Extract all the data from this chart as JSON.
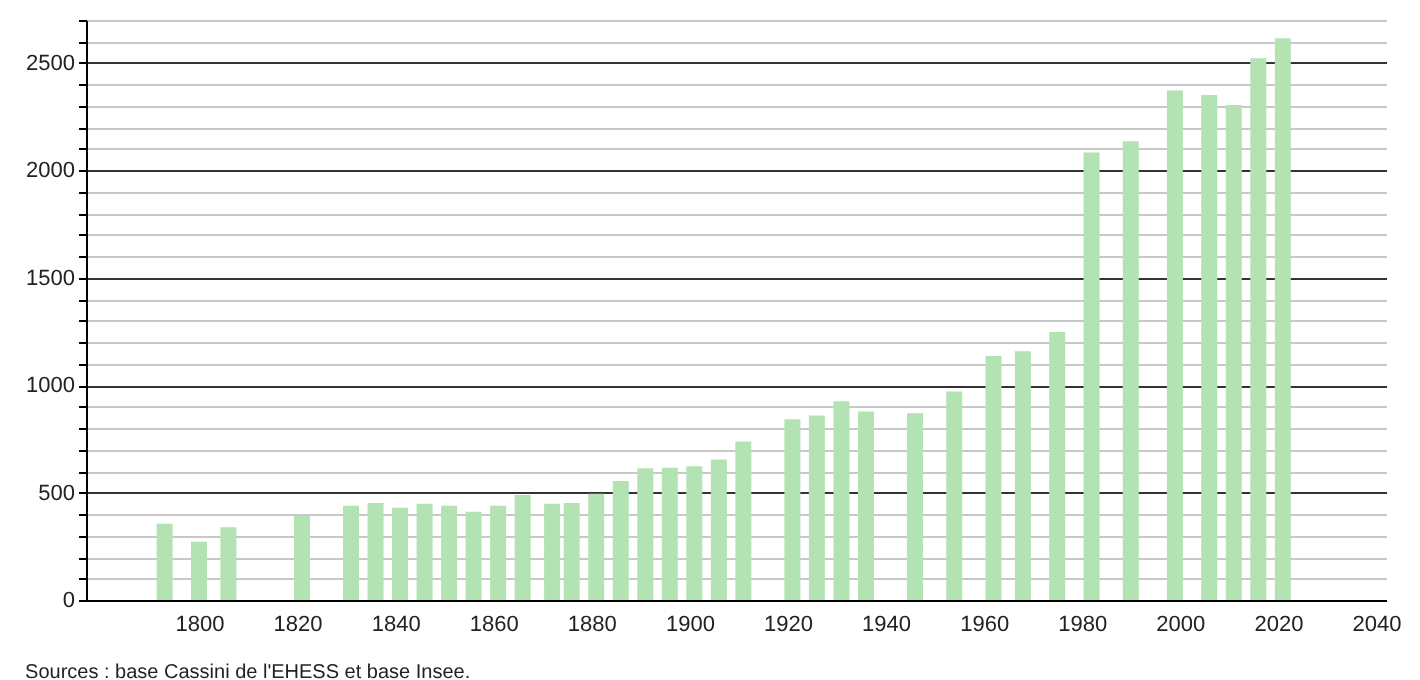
{
  "chart_data": {
    "type": "bar",
    "x": [
      1793,
      1800,
      1806,
      1821,
      1831,
      1836,
      1841,
      1846,
      1851,
      1856,
      1861,
      1866,
      1872,
      1876,
      1881,
      1886,
      1891,
      1896,
      1901,
      1906,
      1911,
      1921,
      1926,
      1931,
      1936,
      1946,
      1954,
      1962,
      1968,
      1975,
      1982,
      1990,
      1999,
      2006,
      2011,
      2016,
      2021
    ],
    "values": [
      355,
      271,
      339,
      392,
      439,
      451,
      430,
      448,
      439,
      411,
      439,
      489,
      448,
      451,
      495,
      554,
      613,
      616,
      623,
      654,
      738,
      841,
      859,
      925,
      878,
      869,
      971,
      1136,
      1158,
      1248,
      2083,
      2136,
      2372,
      2351,
      2304,
      2522,
      2615
    ],
    "color": "#b3e3b3",
    "xlim": [
      1779,
      2040
    ],
    "xticks": [
      1800,
      1820,
      1840,
      1860,
      1880,
      1900,
      1920,
      1940,
      1960,
      1980,
      2000,
      2020,
      2040
    ],
    "ylim": [
      0,
      2700
    ],
    "yticks": [
      0,
      {
        "value": 100,
        "label": null
      },
      {
        "value": 200,
        "label": null
      },
      {
        "value": 300,
        "label": null
      },
      {
        "value": 400,
        "label": null
      },
      500,
      {
        "value": 600,
        "label": null
      },
      {
        "value": 700,
        "label": null
      },
      {
        "value": 800,
        "label": null
      },
      {
        "value": 900,
        "label": null
      },
      1000,
      {
        "value": 1100,
        "label": null
      },
      {
        "value": 1200,
        "label": null
      },
      {
        "value": 1300,
        "label": null
      },
      {
        "value": 1400,
        "label": null
      },
      1500,
      {
        "value": 1600,
        "label": null
      },
      {
        "value": 1700,
        "label": null
      },
      {
        "value": 1800,
        "label": null
      },
      {
        "value": 1900,
        "label": null
      },
      2000,
      {
        "value": 2100,
        "label": null
      },
      {
        "value": 2200,
        "label": null
      },
      {
        "value": 2300,
        "label": null
      },
      {
        "value": 2400,
        "label": null
      },
      2500,
      {
        "value": 2600,
        "label": null
      },
      {
        "value": 2700,
        "label": null
      }
    ],
    "grid": "y",
    "annotations": [
      "Sources : base Cassini de l'EHESS et base Insee."
    ]
  }
}
